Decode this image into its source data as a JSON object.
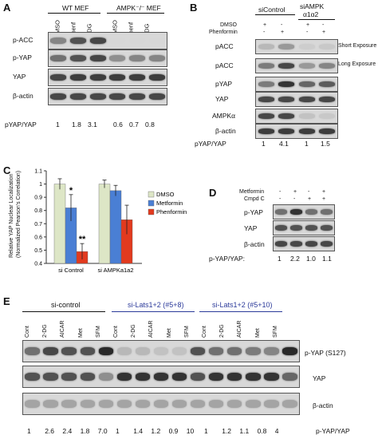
{
  "panel_A": {
    "label": "A",
    "groups": [
      "WT MEF",
      "AMPK⁻/⁻ MEF"
    ],
    "lanes": [
      "DMSO",
      "Phenf",
      "2-DG",
      "DMSO",
      "Phenf",
      "2-DG"
    ],
    "rows": [
      "p-ACC",
      "p-YAP",
      "YAP",
      "β-actin"
    ],
    "ratio_label": "pYAP/YAP",
    "ratios": [
      "1",
      "1.8",
      "3.1",
      "0.6",
      "0.7",
      "0.8"
    ]
  },
  "panel_B": {
    "label": "B",
    "groups": [
      "siControl",
      "siAMPK",
      "α1α2"
    ],
    "treatments": [
      "DMSO",
      "Phenformin"
    ],
    "signs_dmso": [
      "+",
      "-",
      "+",
      "-"
    ],
    "signs_phen": [
      "-",
      "+",
      "-",
      "+"
    ],
    "rows": [
      "pACC",
      "pACC",
      "pYAP",
      "YAP",
      "AMPKα",
      "β-actin"
    ],
    "exposure_labels": [
      "Short Exposure",
      "Long Exposure"
    ],
    "ratio_label": "pYAP/YAP",
    "ratios": [
      "1",
      "4.1",
      "1",
      "1.5"
    ]
  },
  "panel_C": {
    "label": "C",
    "chart_data": {
      "type": "bar",
      "categories": [
        "si Control",
        "si AMPKa1a2"
      ],
      "series": [
        {
          "name": "DMSO",
          "values": [
            1.0,
            1.0
          ],
          "errors": [
            0.04,
            0.03
          ],
          "color": "#dde6c6"
        },
        {
          "name": "Metformin",
          "values": [
            0.82,
            0.95
          ],
          "errors": [
            0.1,
            0.04
          ],
          "color": "#4a7fd4"
        },
        {
          "name": "Phenformin",
          "values": [
            0.49,
            0.73
          ],
          "errors": [
            0.06,
            0.11
          ],
          "color": "#e23a1e"
        }
      ],
      "ylabel_line1": "Relative YAP Nuclear Localization",
      "ylabel_line2": "(Normalized Pearson's Correlation)",
      "ylim": [
        0.4,
        1.1
      ],
      "yticks": [
        "0.4",
        "0.5",
        "0.6",
        "0.7",
        "0.8",
        "0.9",
        "1",
        "1.1"
      ],
      "ytick_values": [
        0.4,
        0.5,
        0.6,
        0.7,
        0.8,
        0.9,
        1.0,
        1.1
      ],
      "annotations": [
        "*",
        "**"
      ],
      "legend_position": "right"
    }
  },
  "panel_D": {
    "label": "D",
    "treatments": [
      "Metformin",
      "Cmpd C"
    ],
    "signs_met": [
      "-",
      "+",
      "-",
      "+"
    ],
    "signs_cc": [
      "-",
      "-",
      "+",
      "+"
    ],
    "rows": [
      "p-YAP",
      "YAP",
      "β-actin"
    ],
    "ratio_label": "p-YAP/YAP:",
    "ratios": [
      "1",
      "2.2",
      "1.0",
      "1.1"
    ]
  },
  "panel_E": {
    "label": "E",
    "groups": [
      "si-control",
      "si-Lats1+2 (#5+8)",
      "si-Lats1+2 (#5+10)"
    ],
    "lanes": [
      "Cont",
      "2-DG",
      "AICAR",
      "Met",
      "SFM",
      "Cont",
      "2-DG",
      "AICAR",
      "Met",
      "SFM",
      "Cont",
      "2-DG",
      "AICAR",
      "Met",
      "SFM"
    ],
    "rows": [
      "p-YAP (S127)",
      "YAP",
      "β-actin"
    ],
    "ratio_label": "p-YAP/YAP",
    "ratios": [
      "1",
      "2.6",
      "2.4",
      "1.8",
      "7.0",
      "1",
      "1.4",
      "1.2",
      "0.9",
      "10",
      "1",
      "1.2",
      "1.1",
      "0.8",
      "4"
    ]
  }
}
